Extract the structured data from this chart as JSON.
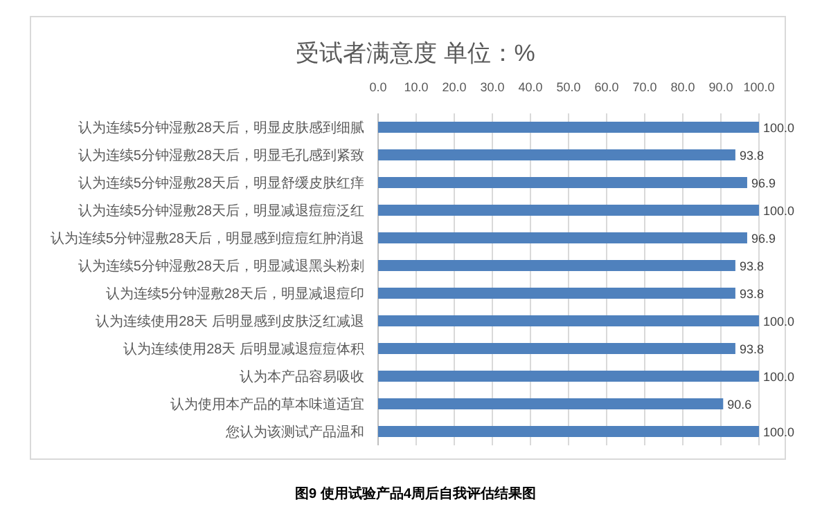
{
  "chart_data": {
    "type": "bar",
    "orientation": "horizontal",
    "title": "受试者满意度 单位：%",
    "categories": [
      "认为连续5分钟湿敷28天后，明显皮肤感到细腻",
      "认为连续5分钟湿敷28天后，明显毛孔感到紧致",
      "认为连续5分钟湿敷28天后，明显舒缓皮肤红痒",
      "认为连续5分钟湿敷28天后，明显减退痘痘泛红",
      "认为连续5分钟湿敷28天后，明显感到痘痘红肿消退",
      "认为连续5分钟湿敷28天后，明显减退黑头粉刺",
      "认为连续5分钟湿敷28天后，明显减退痘印",
      "认为连续使用28天 后明显感到皮肤泛红减退",
      "认为连续使用28天 后明显减退痘痘体积",
      "认为本产品容易吸收",
      "认为使用本产品的草本味道适宜",
      "您认为该测试产品温和"
    ],
    "values": [
      100.0,
      93.8,
      96.9,
      100.0,
      96.9,
      93.8,
      93.8,
      100.0,
      93.8,
      100.0,
      90.6,
      100.0
    ],
    "value_labels": [
      "100.0",
      "93.8",
      "96.9",
      "100.0",
      "96.9",
      "93.8",
      "93.8",
      "100.0",
      "93.8",
      "100.0",
      "90.6",
      "100.0"
    ],
    "color": "#4f81bd",
    "xlim": [
      0,
      100
    ],
    "xticks": [
      {
        "value": 0,
        "label": "0.0"
      },
      {
        "value": 10,
        "label": "10.0"
      },
      {
        "value": 20,
        "label": "20.0"
      },
      {
        "value": 30,
        "label": "30.0"
      },
      {
        "value": 40,
        "label": "40.0"
      },
      {
        "value": 50,
        "label": "50.0"
      },
      {
        "value": 60,
        "label": "60.0"
      },
      {
        "value": 70,
        "label": "70.0"
      },
      {
        "value": 80,
        "label": "80.0"
      },
      {
        "value": 90,
        "label": "90.0"
      },
      {
        "value": 100,
        "label": "100.0"
      }
    ],
    "grid": "x",
    "annotations": [
      "图9 使用试验产品4周后自我评估结果图"
    ]
  }
}
